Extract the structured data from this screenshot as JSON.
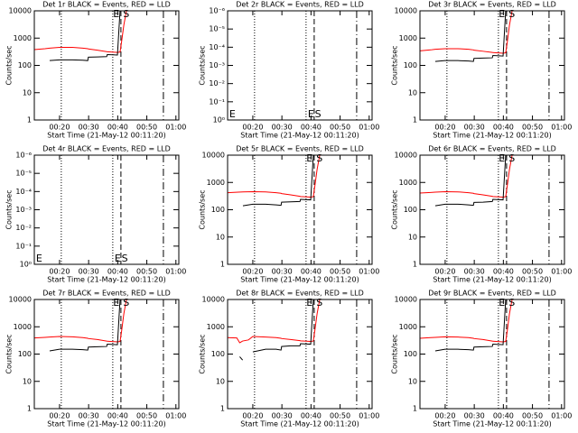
{
  "chart_data": [
    {
      "type": "line",
      "title": "Det 1r BLACK = Events, RED = LLD",
      "xlabel": "Start Time (21-May-12 00:11:20)",
      "ylabel": "Counts/sec",
      "log_y": true,
      "xlim": [
        11.33,
        61
      ],
      "xticks": [
        {
          "value": 20,
          "label": "00:20"
        },
        {
          "value": 30,
          "label": "00:30"
        },
        {
          "value": 40,
          "label": "00:40"
        },
        {
          "value": 50,
          "label": "00:50"
        },
        {
          "value": 60,
          "label": "01:00"
        }
      ],
      "ylim": [
        1,
        10000
      ],
      "yticks": [
        1,
        10,
        100,
        1000,
        10000
      ],
      "x": [
        11.3,
        15,
        16.6,
        20,
        24.4,
        28,
        29.7,
        29.9,
        33,
        36.2,
        36.4,
        39.9,
        40.8,
        41.3,
        42.1,
        43
      ],
      "series": [
        {
          "color": "#ff0000",
          "values": [
            380,
            410,
            430,
            460,
            460,
            430,
            410,
            400,
            360,
            320,
            315,
            300,
            310,
            700,
            3000,
            10000
          ]
        },
        {
          "color": "#000000",
          "values": [
            null,
            null,
            150,
            160,
            160,
            155,
            150,
            200,
            205,
            210,
            250,
            240,
            10000,
            null,
            null,
            null
          ]
        }
      ],
      "vlines": [
        {
          "x": 20.6,
          "style": "dotted"
        },
        {
          "x": 38.3,
          "style": "dotted"
        },
        {
          "x": 41.1,
          "style": "dashed"
        },
        {
          "x": 55.7,
          "style": "dashdot"
        }
      ],
      "annotation_position": "top",
      "annotations": [
        {
          "text": "E",
          "x": 39.5
        },
        {
          "text": "S",
          "x": 42.9
        }
      ]
    },
    {
      "type": "line",
      "title": "Det 2r BLACK = Events, RED = LLD",
      "xlabel": "Start Time (21-May-12 00:11:20)",
      "ylabel": "Counts/sec",
      "log_y": true,
      "xlim": [
        11.33,
        61
      ],
      "xticks": [
        {
          "value": 20,
          "label": "00:20"
        },
        {
          "value": 30,
          "label": "00:30"
        },
        {
          "value": 40,
          "label": "00:40"
        },
        {
          "value": 50,
          "label": "00:50"
        },
        {
          "value": 60,
          "label": "01:00"
        }
      ],
      "ylim": [
        1,
        1e-06
      ],
      "yticks": [
        {
          "value": 1e-06,
          "label": "10⁻⁶"
        },
        {
          "value": 1e-05,
          "label": "10⁻⁵"
        },
        {
          "value": 0.0001,
          "label": "10⁻⁴"
        },
        {
          "value": 0.001,
          "label": "10⁻³"
        },
        {
          "value": 0.01,
          "label": "10⁻²"
        },
        {
          "value": 0.1,
          "label": "10⁻¹"
        },
        {
          "value": 1,
          "label": "10⁰"
        }
      ],
      "x": [],
      "series": [],
      "vlines": [
        {
          "x": 20.6,
          "style": "dotted"
        },
        {
          "x": 38.3,
          "style": "dotted"
        },
        {
          "x": 41.1,
          "style": "dashed"
        },
        {
          "x": 55.7,
          "style": "dashdot"
        }
      ],
      "annotation_position": "bottom",
      "annotations": [
        {
          "text": "E",
          "x": 13
        },
        {
          "text": "E",
          "x": 40
        },
        {
          "text": "S",
          "x": 42.4
        }
      ]
    },
    {
      "type": "line",
      "title": "Det 3r BLACK = Events, RED = LLD",
      "xlabel": "Start Time (21-May-12 00:11:20)",
      "ylabel": "Counts/sec",
      "log_y": true,
      "xlim": [
        11.33,
        61
      ],
      "xticks": [
        {
          "value": 20,
          "label": "00:20"
        },
        {
          "value": 30,
          "label": "00:30"
        },
        {
          "value": 40,
          "label": "00:40"
        },
        {
          "value": 50,
          "label": "00:50"
        },
        {
          "value": 60,
          "label": "01:00"
        }
      ],
      "ylim": [
        1,
        10000
      ],
      "yticks": [
        1,
        10,
        100,
        1000,
        10000
      ],
      "x": [
        11.3,
        15,
        16.6,
        20,
        24.4,
        28,
        29.7,
        29.9,
        33,
        36.2,
        36.4,
        39.9,
        40.8,
        41.3,
        42.1,
        43
      ],
      "series": [
        {
          "color": "#ff0000",
          "values": [
            340,
            370,
            390,
            410,
            410,
            390,
            370,
            360,
            330,
            300,
            295,
            280,
            290,
            650,
            3000,
            10000
          ]
        },
        {
          "color": "#000000",
          "values": [
            null,
            null,
            140,
            150,
            150,
            145,
            140,
            180,
            185,
            190,
            230,
            220,
            10000,
            null,
            null,
            null
          ]
        }
      ],
      "vlines": [
        {
          "x": 20.6,
          "style": "dotted"
        },
        {
          "x": 38.3,
          "style": "dotted"
        },
        {
          "x": 41.1,
          "style": "dashed"
        },
        {
          "x": 55.7,
          "style": "dashdot"
        }
      ],
      "annotation_position": "top",
      "annotations": [
        {
          "text": "E",
          "x": 39.5
        },
        {
          "text": "S",
          "x": 42.9
        }
      ]
    },
    {
      "type": "line",
      "title": "Det 4r BLACK = Events, RED = LLD",
      "xlabel": "Start Time (21-May-12 00:11:20)",
      "ylabel": "Counts/sec",
      "log_y": true,
      "xlim": [
        11.33,
        61
      ],
      "xticks": [
        {
          "value": 20,
          "label": "00:20"
        },
        {
          "value": 30,
          "label": "00:30"
        },
        {
          "value": 40,
          "label": "00:40"
        },
        {
          "value": 50,
          "label": "00:50"
        },
        {
          "value": 60,
          "label": "01:00"
        }
      ],
      "ylim": [
        1,
        1e-06
      ],
      "yticks": [
        {
          "value": 1e-06,
          "label": "10⁻⁶"
        },
        {
          "value": 1e-05,
          "label": "10⁻⁵"
        },
        {
          "value": 0.0001,
          "label": "10⁻⁴"
        },
        {
          "value": 0.001,
          "label": "10⁻³"
        },
        {
          "value": 0.01,
          "label": "10⁻²"
        },
        {
          "value": 0.1,
          "label": "10⁻¹"
        },
        {
          "value": 1,
          "label": "10⁰"
        }
      ],
      "x": [],
      "series": [],
      "vlines": [
        {
          "x": 20.6,
          "style": "dotted"
        },
        {
          "x": 38.3,
          "style": "dotted"
        },
        {
          "x": 41.1,
          "style": "dashed"
        },
        {
          "x": 55.7,
          "style": "dashdot"
        }
      ],
      "annotation_position": "bottom",
      "annotations": [
        {
          "text": "E",
          "x": 13
        },
        {
          "text": "E",
          "x": 40
        },
        {
          "text": "S",
          "x": 42.4
        }
      ]
    },
    {
      "type": "line",
      "title": "Det 5r BLACK = Events, RED = LLD",
      "xlabel": "Start Time (21-May-12 00:11:20)",
      "ylabel": "Counts/sec",
      "log_y": true,
      "xlim": [
        11.33,
        61
      ],
      "xticks": [
        {
          "value": 20,
          "label": "00:20"
        },
        {
          "value": 30,
          "label": "00:30"
        },
        {
          "value": 40,
          "label": "00:40"
        },
        {
          "value": 50,
          "label": "00:50"
        },
        {
          "value": 60,
          "label": "01:00"
        }
      ],
      "ylim": [
        1,
        10000
      ],
      "yticks": [
        1,
        10,
        100,
        1000,
        10000
      ],
      "x": [
        11.3,
        15,
        16.6,
        20,
        24.4,
        28,
        29.7,
        29.9,
        33,
        36.2,
        36.4,
        39.9,
        40.8,
        41.3,
        42.1,
        43
      ],
      "series": [
        {
          "color": "#ff0000",
          "values": [
            420,
            440,
            450,
            460,
            450,
            420,
            400,
            390,
            350,
            310,
            305,
            290,
            300,
            700,
            3000,
            10000
          ]
        },
        {
          "color": "#000000",
          "values": [
            null,
            null,
            140,
            160,
            160,
            150,
            145,
            190,
            195,
            200,
            240,
            230,
            10000,
            null,
            null,
            null
          ]
        }
      ],
      "vlines": [
        {
          "x": 20.6,
          "style": "dotted"
        },
        {
          "x": 38.3,
          "style": "dotted"
        },
        {
          "x": 41.1,
          "style": "dashed"
        },
        {
          "x": 55.7,
          "style": "dashdot"
        }
      ],
      "annotation_position": "top",
      "annotations": [
        {
          "text": "E",
          "x": 39.5
        },
        {
          "text": "S",
          "x": 42.9
        }
      ]
    },
    {
      "type": "line",
      "title": "Det 6r BLACK = Events, RED = LLD",
      "xlabel": "Start Time (21-May-12 00:11:20)",
      "ylabel": "Counts/sec",
      "log_y": true,
      "xlim": [
        11.33,
        61
      ],
      "xticks": [
        {
          "value": 20,
          "label": "00:20"
        },
        {
          "value": 30,
          "label": "00:30"
        },
        {
          "value": 40,
          "label": "00:40"
        },
        {
          "value": 50,
          "label": "00:50"
        },
        {
          "value": 60,
          "label": "01:00"
        }
      ],
      "ylim": [
        1,
        10000
      ],
      "yticks": [
        1,
        10,
        100,
        1000,
        10000
      ],
      "x": [
        11.3,
        15,
        16.6,
        20,
        24.4,
        28,
        29.7,
        29.9,
        33,
        36.2,
        36.4,
        39.9,
        40.8,
        41.3,
        42.1,
        43
      ],
      "series": [
        {
          "color": "#ff0000",
          "values": [
            410,
            430,
            440,
            460,
            450,
            420,
            400,
            390,
            350,
            310,
            305,
            290,
            300,
            700,
            3000,
            10000
          ]
        },
        {
          "color": "#000000",
          "values": [
            null,
            null,
            140,
            160,
            160,
            150,
            145,
            185,
            190,
            200,
            240,
            230,
            10000,
            null,
            null,
            null
          ]
        }
      ],
      "vlines": [
        {
          "x": 20.6,
          "style": "dotted"
        },
        {
          "x": 38.3,
          "style": "dotted"
        },
        {
          "x": 41.1,
          "style": "dashed"
        },
        {
          "x": 55.7,
          "style": "dashdot"
        }
      ],
      "annotation_position": "top",
      "annotations": [
        {
          "text": "E",
          "x": 39.5
        },
        {
          "text": "S",
          "x": 42.9
        }
      ]
    },
    {
      "type": "line",
      "title": "Det 7r BLACK = Events, RED = LLD",
      "xlabel": "Start Time (21-May-12 00:11:20)",
      "ylabel": "Counts/sec",
      "log_y": true,
      "xlim": [
        11.33,
        61
      ],
      "xticks": [
        {
          "value": 20,
          "label": "00:20"
        },
        {
          "value": 30,
          "label": "00:30"
        },
        {
          "value": 40,
          "label": "00:40"
        },
        {
          "value": 50,
          "label": "00:50"
        },
        {
          "value": 60,
          "label": "01:00"
        }
      ],
      "ylim": [
        1,
        10000
      ],
      "yticks": [
        1,
        10,
        100,
        1000,
        10000
      ],
      "x": [
        11.3,
        15,
        16.6,
        20,
        24.4,
        28,
        29.7,
        29.9,
        33,
        36.2,
        36.4,
        39.9,
        40.8,
        41.3,
        42.1,
        43
      ],
      "series": [
        {
          "color": "#ff0000",
          "values": [
            390,
            410,
            420,
            440,
            430,
            400,
            380,
            370,
            340,
            300,
            295,
            280,
            290,
            650,
            3000,
            10000
          ]
        },
        {
          "color": "#000000",
          "values": [
            null,
            null,
            130,
            150,
            150,
            145,
            140,
            180,
            185,
            190,
            230,
            220,
            10000,
            null,
            null,
            null
          ]
        }
      ],
      "vlines": [
        {
          "x": 20.6,
          "style": "dotted"
        },
        {
          "x": 38.3,
          "style": "dotted"
        },
        {
          "x": 41.1,
          "style": "dashed"
        },
        {
          "x": 55.7,
          "style": "dashdot"
        }
      ],
      "annotation_position": "top",
      "annotations": [
        {
          "text": "E",
          "x": 39.5
        },
        {
          "text": "S",
          "x": 42.9
        }
      ]
    },
    {
      "type": "line",
      "title": "Det 8r BLACK = Events, RED = LLD",
      "xlabel": "Start Time (21-May-12 00:11:20)",
      "ylabel": "Counts/sec",
      "log_y": true,
      "xlim": [
        11.33,
        61
      ],
      "xticks": [
        {
          "value": 20,
          "label": "00:20"
        },
        {
          "value": 30,
          "label": "00:30"
        },
        {
          "value": 40,
          "label": "00:40"
        },
        {
          "value": 50,
          "label": "00:50"
        },
        {
          "value": 60,
          "label": "01:00"
        }
      ],
      "ylim": [
        1,
        10000
      ],
      "yticks": [
        1,
        10,
        100,
        1000,
        10000
      ],
      "x": [
        11.3,
        14.5,
        15.5,
        16.5,
        18.5,
        20,
        24.4,
        28,
        29.7,
        29.9,
        33,
        36.2,
        36.4,
        39.9,
        40.8,
        41.3,
        42.1,
        43
      ],
      "series": [
        {
          "color": "#ff0000",
          "values": [
            400,
            390,
            260,
            300,
            330,
            440,
            420,
            400,
            380,
            370,
            340,
            310,
            305,
            290,
            300,
            700,
            3000,
            10000
          ]
        },
        {
          "color": "#000000",
          "values": [
            null,
            null,
            80,
            60,
            null,
            120,
            150,
            150,
            140,
            190,
            200,
            200,
            240,
            230,
            10000,
            null,
            null,
            null
          ]
        }
      ],
      "vlines": [
        {
          "x": 20.6,
          "style": "dotted"
        },
        {
          "x": 38.3,
          "style": "dotted"
        },
        {
          "x": 41.1,
          "style": "dashed"
        },
        {
          "x": 55.7,
          "style": "dashdot"
        }
      ],
      "annotation_position": "top",
      "annotations": [
        {
          "text": "E",
          "x": 39.5
        },
        {
          "text": "S",
          "x": 42.9
        }
      ]
    },
    {
      "type": "line",
      "title": "Det 9r BLACK = Events, RED = LLD",
      "xlabel": "Start Time (21-May-12 00:11:20)",
      "ylabel": "Counts/sec",
      "log_y": true,
      "xlim": [
        11.33,
        61
      ],
      "xticks": [
        {
          "value": 20,
          "label": "00:20"
        },
        {
          "value": 30,
          "label": "00:30"
        },
        {
          "value": 40,
          "label": "00:40"
        },
        {
          "value": 50,
          "label": "00:50"
        },
        {
          "value": 60,
          "label": "01:00"
        }
      ],
      "ylim": [
        1,
        10000
      ],
      "yticks": [
        1,
        10,
        100,
        1000,
        10000
      ],
      "x": [
        11.3,
        15,
        16.6,
        20,
        24.4,
        28,
        29.7,
        29.9,
        33,
        36.2,
        36.4,
        39.9,
        40.8,
        41.3,
        42.1,
        43
      ],
      "series": [
        {
          "color": "#ff0000",
          "values": [
            380,
            400,
            410,
            430,
            420,
            400,
            380,
            370,
            340,
            300,
            295,
            280,
            290,
            650,
            3000,
            10000
          ]
        },
        {
          "color": "#000000",
          "values": [
            null,
            null,
            130,
            150,
            150,
            145,
            140,
            180,
            185,
            190,
            230,
            220,
            10000,
            null,
            null,
            null
          ]
        }
      ],
      "vlines": [
        {
          "x": 20.6,
          "style": "dotted"
        },
        {
          "x": 38.3,
          "style": "dotted"
        },
        {
          "x": 41.1,
          "style": "dashed"
        },
        {
          "x": 55.7,
          "style": "dashdot"
        }
      ],
      "annotation_position": "top",
      "annotations": [
        {
          "text": "E",
          "x": 39.5
        },
        {
          "text": "S",
          "x": 42.9
        }
      ]
    }
  ]
}
